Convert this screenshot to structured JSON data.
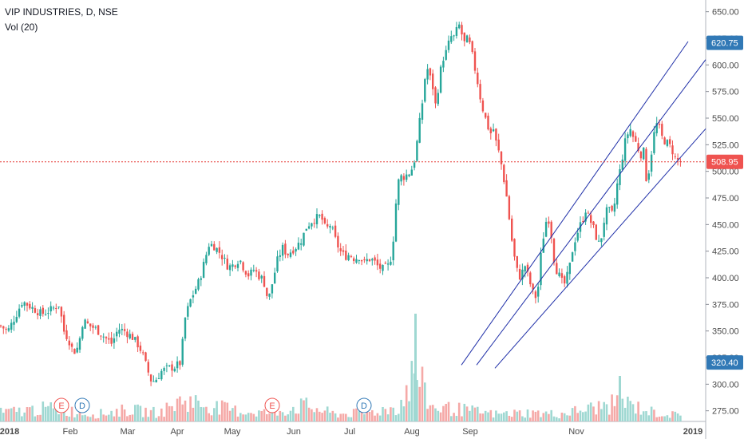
{
  "header": {
    "symbol_line": "VIP INDUSTRIES, D, NSE",
    "volume_line": "Vol (20)"
  },
  "colors": {
    "up": "#26a69a",
    "down": "#ef5350",
    "vol_up": "#9fd8d2",
    "vol_down": "#f5a9a7",
    "channel": "#1f2fa8",
    "price_line": "#e53935",
    "tag_blue": "#3179b6"
  },
  "price_tags": {
    "current": "508.95",
    "upper": "620.75",
    "lower": "320.40"
  },
  "markers": [
    {
      "label": "E",
      "type": "earnings"
    },
    {
      "label": "D",
      "type": "dividend"
    },
    {
      "label": "E",
      "type": "earnings"
    },
    {
      "label": "D",
      "type": "dividend"
    }
  ],
  "chart_data": {
    "type": "candlestick",
    "title": "VIP INDUSTRIES, D, NSE",
    "y_range": [
      265,
      655
    ],
    "y_ticks": [
      "650.00",
      "625.00",
      "600.00",
      "575.00",
      "550.00",
      "525.00",
      "500.00",
      "475.00",
      "450.00",
      "425.00",
      "400.00",
      "375.00",
      "350.00",
      "325.00",
      "300.00",
      "275.00"
    ],
    "x_ticks": [
      "2018",
      "Feb",
      "Mar",
      "Apr",
      "May",
      "Jun",
      "Jul",
      "Aug",
      "Sep",
      "Nov",
      "2019"
    ],
    "current_price": 508.95,
    "volume_indicator": "Vol (20)",
    "close_path": [
      [
        0,
        355
      ],
      [
        10,
        350
      ],
      [
        20,
        365
      ],
      [
        28,
        378
      ],
      [
        40,
        372
      ],
      [
        52,
        366
      ],
      [
        64,
        370
      ],
      [
        74,
        375
      ],
      [
        80,
        350
      ],
      [
        86,
        342
      ],
      [
        92,
        330
      ],
      [
        98,
        335
      ],
      [
        104,
        360
      ],
      [
        112,
        355
      ],
      [
        120,
        352
      ],
      [
        130,
        345
      ],
      [
        140,
        338
      ],
      [
        148,
        352
      ],
      [
        156,
        350
      ],
      [
        166,
        344
      ],
      [
        172,
        338
      ],
      [
        178,
        330
      ],
      [
        184,
        315
      ],
      [
        190,
        302
      ],
      [
        196,
        305
      ],
      [
        202,
        312
      ],
      [
        210,
        315
      ],
      [
        218,
        316
      ],
      [
        226,
        320
      ],
      [
        232,
        362
      ],
      [
        238,
        378
      ],
      [
        244,
        388
      ],
      [
        250,
        398
      ],
      [
        256,
        415
      ],
      [
        262,
        432
      ],
      [
        268,
        430
      ],
      [
        274,
        425
      ],
      [
        280,
        418
      ],
      [
        286,
        410
      ],
      [
        292,
        412
      ],
      [
        300,
        418
      ],
      [
        306,
        408
      ],
      [
        312,
        402
      ],
      [
        318,
        408
      ],
      [
        324,
        402
      ],
      [
        330,
        398
      ],
      [
        336,
        378
      ],
      [
        342,
        398
      ],
      [
        348,
        418
      ],
      [
        354,
        428
      ],
      [
        360,
        422
      ],
      [
        366,
        426
      ],
      [
        372,
        430
      ],
      [
        378,
        436
      ],
      [
        384,
        448
      ],
      [
        390,
        453
      ],
      [
        396,
        456
      ],
      [
        402,
        458
      ],
      [
        408,
        445
      ],
      [
        414,
        450
      ],
      [
        420,
        436
      ],
      [
        426,
        425
      ],
      [
        432,
        420
      ],
      [
        438,
        422
      ],
      [
        444,
        418
      ],
      [
        450,
        420
      ],
      [
        456,
        414
      ],
      [
        462,
        418
      ],
      [
        468,
        416
      ],
      [
        474,
        410
      ],
      [
        480,
        408
      ],
      [
        488,
        412
      ],
      [
        492,
        430
      ],
      [
        496,
        470
      ],
      [
        500,
        495
      ],
      [
        506,
        495
      ],
      [
        512,
        498
      ],
      [
        518,
        505
      ],
      [
        522,
        525
      ],
      [
        526,
        548
      ],
      [
        530,
        570
      ],
      [
        534,
        600
      ],
      [
        538,
        590
      ],
      [
        542,
        580
      ],
      [
        546,
        560
      ],
      [
        550,
        585
      ],
      [
        554,
        605
      ],
      [
        558,
        610
      ],
      [
        562,
        620
      ],
      [
        566,
        628
      ],
      [
        570,
        625
      ],
      [
        574,
        640
      ],
      [
        578,
        630
      ],
      [
        582,
        620
      ],
      [
        586,
        625
      ],
      [
        590,
        615
      ],
      [
        594,
        600
      ],
      [
        598,
        585
      ],
      [
        602,
        568
      ],
      [
        606,
        555
      ],
      [
        610,
        545
      ],
      [
        614,
        535
      ],
      [
        618,
        540
      ],
      [
        622,
        525
      ],
      [
        626,
        515
      ],
      [
        630,
        498
      ],
      [
        634,
        480
      ],
      [
        638,
        455
      ],
      [
        642,
        430
      ],
      [
        646,
        412
      ],
      [
        650,
        400
      ],
      [
        654,
        405
      ],
      [
        658,
        412
      ],
      [
        662,
        400
      ],
      [
        666,
        390
      ],
      [
        670,
        380
      ],
      [
        674,
        390
      ],
      [
        678,
        425
      ],
      [
        682,
        445
      ],
      [
        686,
        460
      ],
      [
        690,
        445
      ],
      [
        694,
        418
      ],
      [
        698,
        405
      ],
      [
        702,
        400
      ],
      [
        706,
        392
      ],
      [
        710,
        400
      ],
      [
        714,
        412
      ],
      [
        718,
        430
      ],
      [
        722,
        440
      ],
      [
        726,
        448
      ],
      [
        730,
        455
      ],
      [
        734,
        465
      ],
      [
        738,
        455
      ],
      [
        742,
        450
      ],
      [
        746,
        440
      ],
      [
        750,
        432
      ],
      [
        754,
        440
      ],
      [
        758,
        460
      ],
      [
        762,
        465
      ],
      [
        766,
        458
      ],
      [
        770,
        470
      ],
      [
        774,
        492
      ],
      [
        778,
        505
      ],
      [
        782,
        525
      ],
      [
        786,
        535
      ],
      [
        790,
        540
      ],
      [
        794,
        530
      ],
      [
        798,
        525
      ],
      [
        802,
        515
      ],
      [
        806,
        520
      ],
      [
        810,
        490
      ],
      [
        814,
        505
      ],
      [
        818,
        530
      ],
      [
        822,
        545
      ],
      [
        826,
        540
      ],
      [
        830,
        530
      ],
      [
        834,
        528
      ],
      [
        838,
        525
      ],
      [
        842,
        520
      ],
      [
        846,
        512
      ],
      [
        850,
        510
      ],
      [
        853,
        509
      ]
    ],
    "volume_profile": [
      [
        0,
        12
      ],
      [
        60,
        18
      ],
      [
        90,
        14
      ],
      [
        120,
        10
      ],
      [
        160,
        16
      ],
      [
        200,
        12
      ],
      [
        230,
        30
      ],
      [
        260,
        22
      ],
      [
        300,
        14
      ],
      [
        340,
        12
      ],
      [
        380,
        22
      ],
      [
        420,
        10
      ],
      [
        460,
        12
      ],
      [
        500,
        20
      ],
      [
        520,
        70
      ],
      [
        540,
        20
      ],
      [
        580,
        16
      ],
      [
        620,
        10
      ],
      [
        660,
        12
      ],
      [
        700,
        10
      ],
      [
        740,
        18
      ],
      [
        780,
        26
      ],
      [
        820,
        12
      ],
      [
        853,
        8
      ]
    ],
    "channels": [
      {
        "from": [
          578,
          318
        ],
        "to": [
          862,
          622
        ]
      },
      {
        "from": [
          597,
          318
        ],
        "to": [
          884,
          605
        ]
      },
      {
        "from": [
          620,
          315
        ],
        "to": [
          884,
          540
        ]
      }
    ]
  }
}
